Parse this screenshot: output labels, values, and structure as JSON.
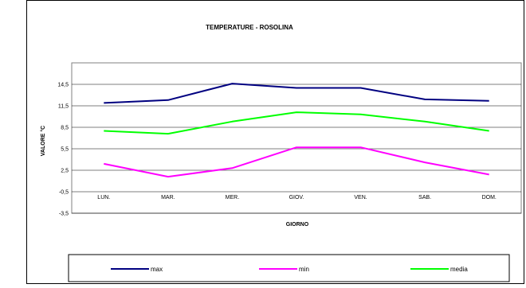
{
  "chart_data": {
    "type": "line",
    "title": "TEMPERATURE - ROSOLINA",
    "xlabel": "GIORNO",
    "ylabel": "VALORE °C",
    "categories": [
      "LUN.",
      "MAR.",
      "MER.",
      "GIOV.",
      "VEN.",
      "SAB.",
      "DOM."
    ],
    "y_ticks": [
      "14,5",
      "11,5",
      "8,5",
      "5,5",
      "2,5",
      "-0,5",
      "-3,5"
    ],
    "y_tick_values": [
      14.5,
      11.5,
      8.5,
      5.5,
      2.5,
      -0.5,
      -3.5
    ],
    "ylim": [
      -3.5,
      17.5
    ],
    "grid": true,
    "legend_position": "bottom",
    "series": [
      {
        "name": "max",
        "color": "#000080",
        "values": [
          11.9,
          12.3,
          14.6,
          14.0,
          14.0,
          12.4,
          12.2
        ]
      },
      {
        "name": "min",
        "color": "#ff00ff",
        "values": [
          3.4,
          1.6,
          2.8,
          5.7,
          5.7,
          3.6,
          1.9
        ]
      },
      {
        "name": "media",
        "color": "#00ff00",
        "values": [
          8.0,
          7.6,
          9.3,
          10.6,
          10.3,
          9.3,
          8.0
        ]
      }
    ]
  }
}
